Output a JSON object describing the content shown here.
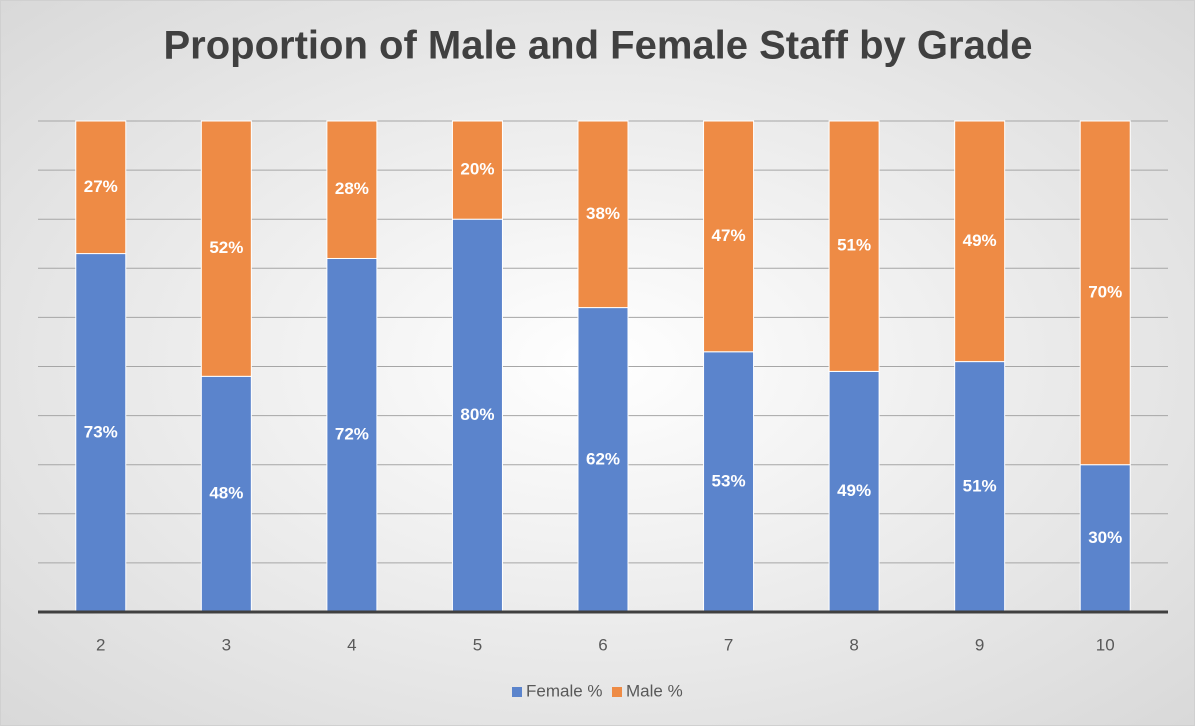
{
  "chart_data": {
    "type": "stacked_bar",
    "title": "Proportion of Male and Female Staff by Grade",
    "categories": [
      "2",
      "3",
      "4",
      "5",
      "6",
      "7",
      "8",
      "9",
      "10"
    ],
    "series": [
      {
        "name": "Female %",
        "color": "#5b84cc",
        "values": [
          73,
          48,
          72,
          80,
          62,
          53,
          49,
          51,
          30
        ],
        "value_labels": [
          "73%",
          "48%",
          "72%",
          "80%",
          "62%",
          "53%",
          "49%",
          "51%",
          "30%"
        ]
      },
      {
        "name": "Male %",
        "color": "#ee8b45",
        "values": [
          27,
          52,
          28,
          20,
          38,
          47,
          51,
          49,
          70
        ],
        "value_labels": [
          "27%",
          "52%",
          "28%",
          "20%",
          "38%",
          "47%",
          "51%",
          "49%",
          "70%"
        ]
      }
    ],
    "ylim": [
      0,
      100
    ],
    "yticks": [
      0,
      10,
      20,
      30,
      40,
      50,
      60,
      70,
      80,
      90,
      100
    ],
    "grid": true,
    "legend": "bottom"
  }
}
